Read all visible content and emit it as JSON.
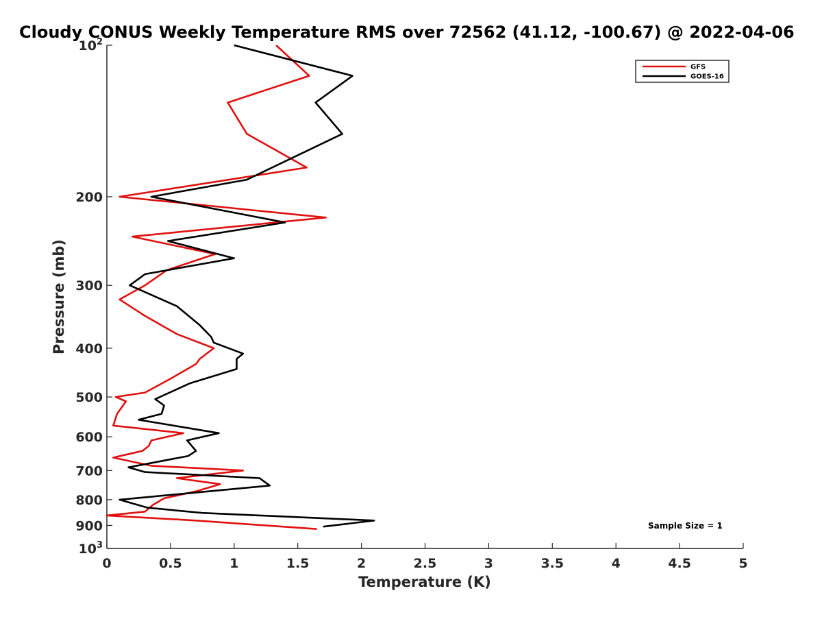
{
  "chart_data": {
    "type": "line",
    "title": "Cloudy CONUS Weekly Temperature RMS over 72562 (41.12, -100.67) @ 2022-04-06",
    "xlabel": "Temperature (K)",
    "ylabel": "Pressure (mb)",
    "xlim": [
      0,
      5
    ],
    "ylim": [
      1000,
      100
    ],
    "yscale": "log",
    "y_reversed": true,
    "xticks": [
      "0",
      "0.5",
      "1",
      "1.5",
      "2",
      "2.5",
      "3",
      "3.5",
      "4",
      "4.5",
      "5"
    ],
    "yticks": [
      {
        "value": 100,
        "base": "10",
        "exp": "2"
      },
      {
        "value": 200,
        "label": "200"
      },
      {
        "value": 300,
        "label": "300"
      },
      {
        "value": 400,
        "label": "400"
      },
      {
        "value": 500,
        "label": "500"
      },
      {
        "value": 600,
        "label": "600"
      },
      {
        "value": 700,
        "label": "700"
      },
      {
        "value": 800,
        "label": "800"
      },
      {
        "value": 900,
        "label": "900"
      },
      {
        "value": 1000,
        "base": "10",
        "exp": "3"
      }
    ],
    "legend_position": "top-right",
    "grid": false,
    "annotation": "Sample Size = 1",
    "series": [
      {
        "name": "GFS",
        "color": "#e0110f",
        "points": [
          [
            1.33,
            100
          ],
          [
            1.59,
            115
          ],
          [
            0.95,
            130
          ],
          [
            1.1,
            150
          ],
          [
            1.57,
            175
          ],
          [
            0.1,
            200
          ],
          [
            1.72,
            220
          ],
          [
            0.2,
            240
          ],
          [
            0.85,
            260
          ],
          [
            0.47,
            280
          ],
          [
            0.3,
            300
          ],
          [
            0.1,
            320
          ],
          [
            0.3,
            345
          ],
          [
            0.55,
            375
          ],
          [
            0.84,
            400
          ],
          [
            0.73,
            420
          ],
          [
            0.7,
            430
          ],
          [
            0.5,
            460
          ],
          [
            0.3,
            490
          ],
          [
            0.07,
            500
          ],
          [
            0.15,
            510
          ],
          [
            0.08,
            540
          ],
          [
            0.05,
            570
          ],
          [
            0.6,
            590
          ],
          [
            0.35,
            610
          ],
          [
            0.33,
            625
          ],
          [
            0.28,
            640
          ],
          [
            0.05,
            660
          ],
          [
            0.35,
            685
          ],
          [
            1.07,
            700
          ],
          [
            0.55,
            725
          ],
          [
            0.89,
            745
          ],
          [
            0.7,
            770
          ],
          [
            0.45,
            795
          ],
          [
            0.36,
            820
          ],
          [
            0.3,
            845
          ],
          [
            0.0,
            860
          ],
          [
            0.7,
            880
          ],
          [
            1.65,
            915
          ]
        ]
      },
      {
        "name": "GOES-16",
        "color": "#000000",
        "points": [
          [
            1.0,
            100
          ],
          [
            1.93,
            115
          ],
          [
            1.64,
            130
          ],
          [
            1.85,
            150
          ],
          [
            1.1,
            185
          ],
          [
            0.35,
            200
          ],
          [
            1.4,
            225
          ],
          [
            0.48,
            245
          ],
          [
            1.0,
            265
          ],
          [
            0.3,
            285
          ],
          [
            0.18,
            300
          ],
          [
            0.55,
            330
          ],
          [
            0.73,
            360
          ],
          [
            0.82,
            380
          ],
          [
            0.84,
            390
          ],
          [
            1.07,
            410
          ],
          [
            1.02,
            420
          ],
          [
            1.02,
            440
          ],
          [
            0.65,
            470
          ],
          [
            0.38,
            505
          ],
          [
            0.45,
            520
          ],
          [
            0.43,
            540
          ],
          [
            0.25,
            555
          ],
          [
            0.88,
            590
          ],
          [
            0.63,
            610
          ],
          [
            0.7,
            640
          ],
          [
            0.64,
            655
          ],
          [
            0.17,
            690
          ],
          [
            0.3,
            705
          ],
          [
            1.2,
            725
          ],
          [
            1.28,
            750
          ],
          [
            0.1,
            800
          ],
          [
            0.32,
            830
          ],
          [
            0.75,
            850
          ],
          [
            2.1,
            880
          ],
          [
            1.7,
            905
          ]
        ]
      }
    ]
  }
}
